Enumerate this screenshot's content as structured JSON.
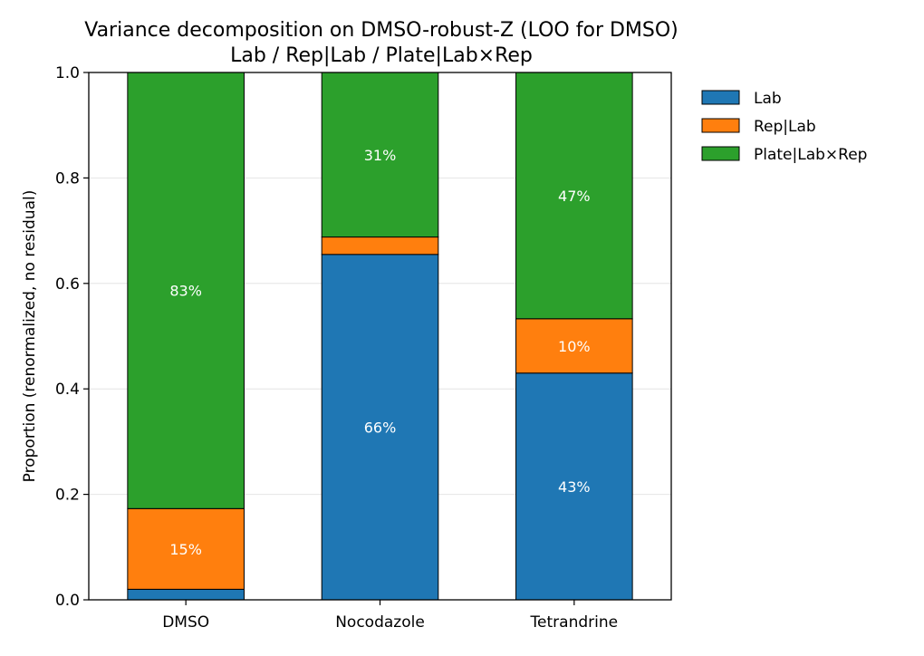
{
  "chart_data": {
    "type": "bar",
    "stacked": true,
    "title": "Variance decomposition on DMSO-robust-Z (LOO for DMSO)",
    "subtitle": "Lab / Rep|Lab / Plate|Lab×Rep",
    "xlabel": "",
    "ylabel": "Proportion (renormalized, no residual)",
    "ylim": [
      0,
      1
    ],
    "yticks": [
      0.0,
      0.2,
      0.4,
      0.6,
      0.8,
      1.0
    ],
    "ytick_labels": [
      "0.0",
      "0.2",
      "0.4",
      "0.6",
      "0.8",
      "1.0"
    ],
    "grid": "horizontal",
    "legend_position": "outside-top-right",
    "categories": [
      "DMSO",
      "Nocodazole",
      "Tetrandrine"
    ],
    "series": [
      {
        "name": "Lab",
        "color": "#1f77b4",
        "values": [
          0.02,
          0.655,
          0.43
        ],
        "labels": [
          "",
          "66%",
          "43%"
        ]
      },
      {
        "name": "Rep|Lab",
        "color": "#ff7f0e",
        "values": [
          0.153,
          0.033,
          0.103
        ],
        "labels": [
          "15%",
          "",
          "10%"
        ]
      },
      {
        "name": "Plate|Lab×Rep",
        "color": "#2ca02c",
        "values": [
          0.827,
          0.312,
          0.467
        ],
        "labels": [
          "83%",
          "31%",
          "47%"
        ]
      }
    ]
  }
}
